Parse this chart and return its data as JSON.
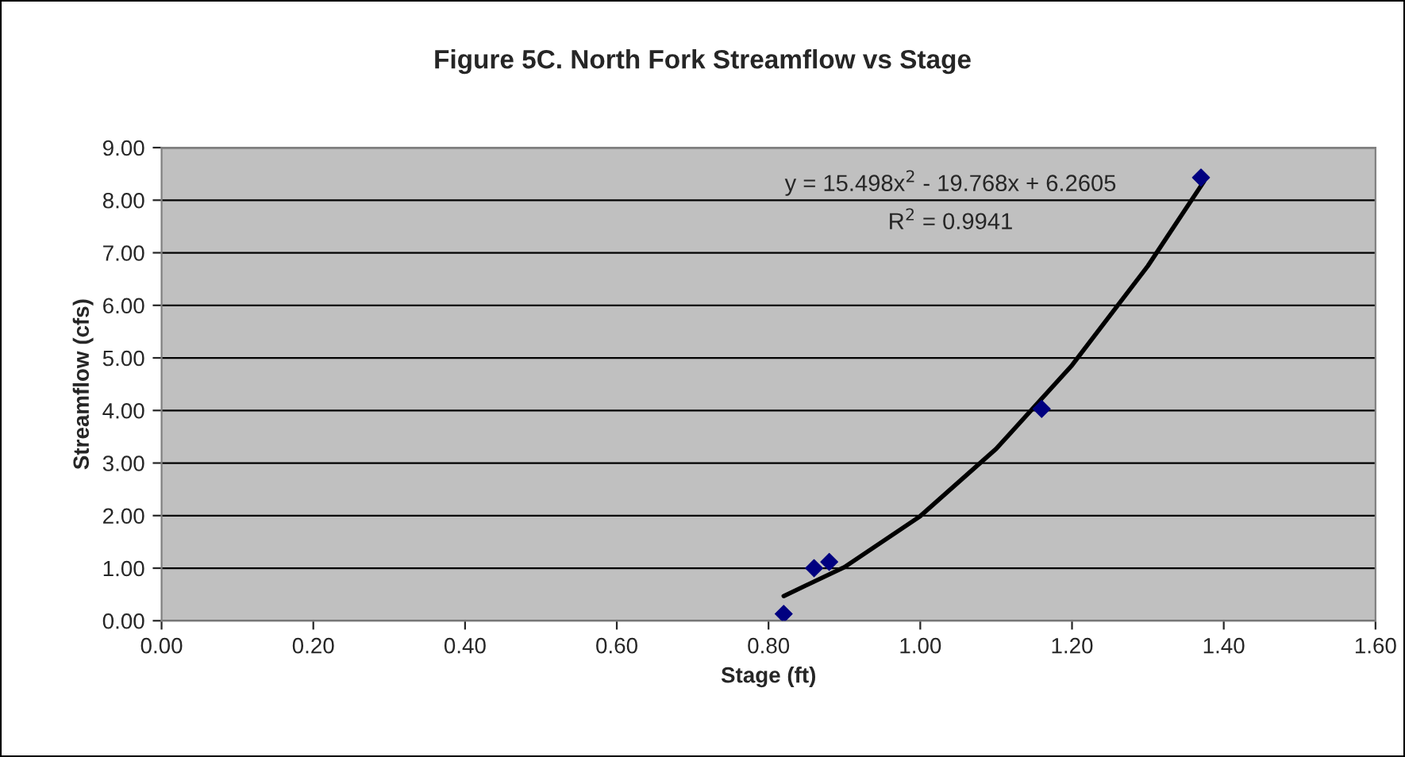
{
  "chart_data": {
    "type": "scatter",
    "title": "Figure 5C. North Fork Streamflow vs Stage",
    "xlabel": "Stage (ft)",
    "ylabel": "Streamflow (cfs)",
    "x": [
      0.82,
      0.86,
      0.88,
      1.16,
      1.37
    ],
    "series": [
      {
        "color": "#000080",
        "marker": "diamond",
        "values": [
          0.13,
          1.0,
          1.12,
          4.03,
          8.43
        ]
      },
      {
        "type": "line",
        "color": "#000000",
        "line_style": "solid",
        "x": [
          0.82,
          0.9,
          1.0,
          1.1,
          1.2,
          1.3,
          1.374
        ],
        "values": [
          0.47,
          1.02,
          1.99,
          3.27,
          4.86,
          6.75,
          8.36
        ]
      }
    ],
    "annotations": [
      "y = 15.498x$^{2}$ - 19.768x + 6.2605",
      "R$^{2}$ = 0.9941"
    ],
    "xlim": [
      0,
      1.6
    ],
    "xticks": [
      {
        "value": 0,
        "label": "0.00"
      },
      {
        "value": 0.2,
        "label": "0.20"
      },
      {
        "value": 0.4,
        "label": "0.40"
      },
      {
        "value": 0.6,
        "label": "0.60"
      },
      {
        "value": 0.8,
        "label": "0.80"
      },
      {
        "value": 1.0,
        "label": "1.00"
      },
      {
        "value": 1.2,
        "label": "1.20"
      },
      {
        "value": 1.4,
        "label": "1.40"
      },
      {
        "value": 1.6,
        "label": "1.60"
      }
    ],
    "ylim": [
      0,
      9
    ],
    "yticks": [
      {
        "value": 0,
        "label": "0.00"
      },
      {
        "value": 1,
        "label": "1.00"
      },
      {
        "value": 2,
        "label": "2.00"
      },
      {
        "value": 3,
        "label": "3.00"
      },
      {
        "value": 4,
        "label": "4.00"
      },
      {
        "value": 5,
        "label": "5.00"
      },
      {
        "value": 6,
        "label": "6.00"
      },
      {
        "value": 7,
        "label": "7.00"
      },
      {
        "value": 8,
        "label": "8.00"
      },
      {
        "value": 9,
        "label": "9.00"
      }
    ],
    "grid": "y",
    "legend": false
  }
}
